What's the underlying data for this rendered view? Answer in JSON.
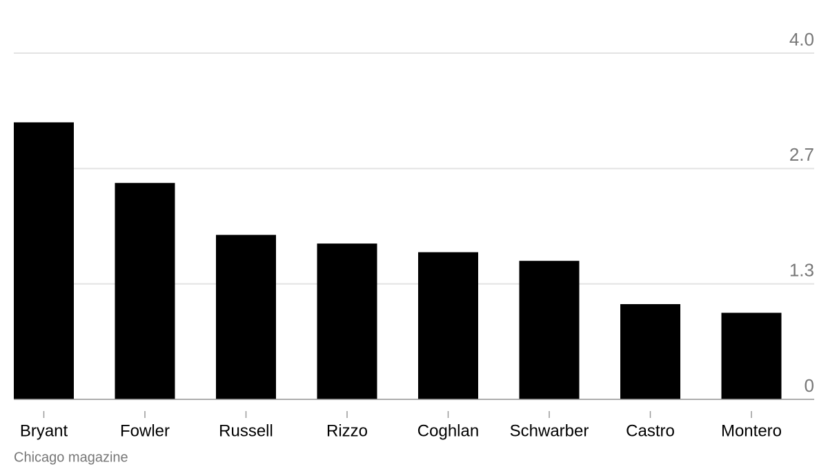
{
  "chart_data": {
    "type": "bar",
    "categories": [
      "Bryant",
      "Fowler",
      "Russell",
      "Rizzo",
      "Coghlan",
      "Schwarber",
      "Castro",
      "Montero"
    ],
    "values": [
      3.2,
      2.5,
      1.9,
      1.8,
      1.7,
      1.6,
      1.1,
      1.0
    ],
    "color": "#000000",
    "ylim": [
      0,
      4
    ],
    "yticks": [
      0,
      {
        "value": 1.3333,
        "label": "1.3"
      },
      {
        "value": 2.6667,
        "label": "2.7"
      },
      {
        "value": 4,
        "label": "4.0"
      }
    ],
    "grid": true,
    "source": "Chicago magazine"
  }
}
